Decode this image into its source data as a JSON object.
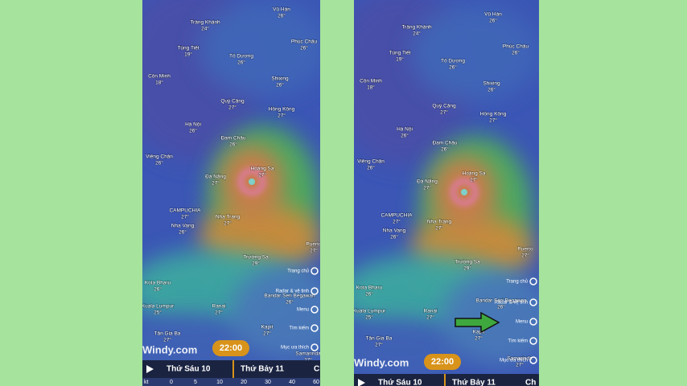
{
  "screens": [
    {
      "places": [
        {
          "name": "Tràng Khánh",
          "temp": "24°"
        },
        {
          "name": "Vũ Hán",
          "temp": "26°"
        },
        {
          "name": "Phúc Châu",
          "temp": "26°"
        },
        {
          "name": "Tùng Tiết",
          "temp": "19°"
        },
        {
          "name": "Tố Dương",
          "temp": "26°"
        },
        {
          "name": "Côn Minh",
          "temp": "18°"
        },
        {
          "name": "Shixing",
          "temp": "26°"
        },
        {
          "name": "Quý Cảng",
          "temp": "27°"
        },
        {
          "name": "Hồng Kông",
          "temp": "27°"
        },
        {
          "name": "Hà Nội",
          "temp": "26°"
        },
        {
          "name": "Đam Châu",
          "temp": "26°"
        },
        {
          "name": "Viêng Chăn",
          "temp": "26°"
        },
        {
          "name": "Hoàng Sa",
          "temp": "27°"
        },
        {
          "name": "Đà Nẵng",
          "temp": "27°"
        },
        {
          "name": "CAMPUCHIA",
          "temp": "27°"
        },
        {
          "name": "Nha Trang",
          "temp": "27°"
        },
        {
          "name": "Nha Vang",
          "temp": "26°"
        },
        {
          "name": "Trường Sa",
          "temp": "29°"
        },
        {
          "name": "Puerto",
          "temp": "27°"
        },
        {
          "name": "Kota Bharu",
          "temp": "26°"
        },
        {
          "name": "Ranai",
          "temp": "27°"
        },
        {
          "name": "Bandar Seri Begawan",
          "temp": "26°"
        },
        {
          "name": "Kuala Lumpur",
          "temp": "25°"
        },
        {
          "name": "Tân Gia Ba",
          "temp": "27°"
        },
        {
          "name": "Kapit",
          "temp": "27°"
        },
        {
          "name": "Samarinda",
          "temp": "27°"
        }
      ],
      "menu": [
        "Trang chủ",
        "Radar & vệ tinh",
        "Menu",
        "Tìm kiếm",
        "Mục ưa thích"
      ],
      "logo": "Windy.com",
      "time": "22:00",
      "days": [
        "Thứ Sáu 10",
        "Thứ Bảy 11",
        "Ch"
      ],
      "scale": {
        "unit": "kt",
        "ticks": [
          "0",
          "5",
          "10",
          "20",
          "30",
          "40",
          "60"
        ]
      }
    },
    {
      "places": [
        {
          "name": "Tràng Khánh",
          "temp": "24°"
        },
        {
          "name": "Vũ Hán",
          "temp": "26°"
        },
        {
          "name": "Phúc Châu",
          "temp": "26°"
        },
        {
          "name": "Tùng Tiết",
          "temp": "19°"
        },
        {
          "name": "Tố Dương",
          "temp": "26°"
        },
        {
          "name": "Côn Minh",
          "temp": "18°"
        },
        {
          "name": "Shixing",
          "temp": "26°"
        },
        {
          "name": "Quý Cảng",
          "temp": "27°"
        },
        {
          "name": "Hồng Kông",
          "temp": "27°"
        },
        {
          "name": "Hà Nội",
          "temp": "26°"
        },
        {
          "name": "Đam Châu",
          "temp": "26°"
        },
        {
          "name": "Viêng Chăn",
          "temp": "26°"
        },
        {
          "name": "Hoàng Sa",
          "temp": "27°"
        },
        {
          "name": "Đà Nẵng",
          "temp": "27°"
        },
        {
          "name": "CAMPUCHIA",
          "temp": "27°"
        },
        {
          "name": "Nha Trang",
          "temp": "27°"
        },
        {
          "name": "Nha Vang",
          "temp": "26°"
        },
        {
          "name": "Trường Sa",
          "temp": "29°"
        },
        {
          "name": "Puerto",
          "temp": "27°"
        },
        {
          "name": "Kota Bharu",
          "temp": "26°"
        },
        {
          "name": "Ranai",
          "temp": "27°"
        },
        {
          "name": "Bandar Seri Begawan",
          "temp": "26°"
        },
        {
          "name": "Kuala Lumpur",
          "temp": "25°"
        },
        {
          "name": "Tân Gia Ba",
          "temp": "27°"
        },
        {
          "name": "Kapit",
          "temp": "27°"
        },
        {
          "name": "Samarinda",
          "temp": "27°"
        }
      ],
      "menu": [
        "Trang chủ",
        "Radar & vệ tinh",
        "Menu",
        "Tìm kiếm",
        "Mục ưa thích"
      ],
      "logo": "Windy.com",
      "time": "22:00",
      "days": [
        "Thứ Sáu 10",
        "Thứ Bảy 11",
        "Ch"
      ]
    }
  ]
}
